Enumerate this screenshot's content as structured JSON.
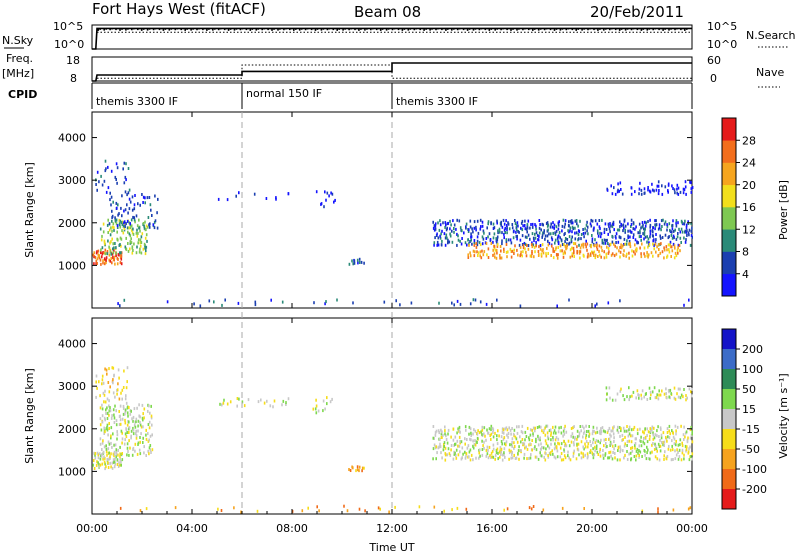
{
  "header": {
    "station": "Fort Hays West (fitACF)",
    "beam": "Beam 08",
    "date": "20/Feb/2011"
  },
  "strips": {
    "nsky": {
      "label": "N.Sky",
      "left_ticks": [
        "10^5",
        "10^0"
      ],
      "right_ticks": [
        "10^5",
        "10^0"
      ],
      "right_label": "N.Search",
      "series": [
        {
          "name": "N.Sky",
          "style": "solid",
          "x": [
            0.0,
            0.15,
            0.2,
            24.0
          ],
          "y": [
            1,
            1,
            20000,
            20000
          ]
        },
        {
          "name": "N.Search",
          "style": "dotted",
          "x": [
            0.2,
            24.0
          ],
          "y": [
            3000,
            3000
          ]
        }
      ]
    },
    "freq": {
      "label_line1": "Freq.",
      "label_line2": "[MHz]",
      "left_ticks": [
        "18",
        "8"
      ],
      "right_ticks": [
        "60",
        "0"
      ],
      "right_label": "Nave",
      "ylim_left": [
        8,
        18
      ],
      "ylim_right": [
        0,
        60
      ],
      "freq_series": {
        "name": "Freq.",
        "x": [
          0.0,
          0.15,
          0.2,
          6.0,
          6.0,
          12.0,
          12.0,
          24.0
        ],
        "y": [
          8,
          8,
          10.5,
          10.5,
          12,
          12,
          15.5,
          15.5
        ]
      },
      "nave_series": {
        "name": "Nave",
        "x": [
          0.2,
          6.0,
          6.0,
          12.0,
          12.0,
          24.0
        ],
        "y": [
          7,
          7,
          40,
          40,
          7,
          7
        ]
      }
    },
    "cpid": {
      "label": "CPID",
      "segments": [
        {
          "start": 0,
          "end": 6,
          "label": "themis 3300 IF"
        },
        {
          "start": 6,
          "end": 12,
          "label": "normal 150 IF"
        },
        {
          "start": 12,
          "end": 24,
          "label": "themis 3300 IF"
        }
      ]
    }
  },
  "chart_data": [
    {
      "type": "heatmap",
      "name": "power",
      "ylabel": "Slant Range [km]",
      "xlabel": "",
      "xlim": [
        0,
        24
      ],
      "ylim": [
        0,
        4600
      ],
      "yticks": [
        1000,
        2000,
        3000,
        4000
      ],
      "colorbar": {
        "label": "Power [dB]",
        "ticks": [
          4,
          8,
          12,
          16,
          20,
          24,
          28
        ],
        "bands": [
          "#1414ff",
          "#1b3fb0",
          "#2a8a78",
          "#7ec852",
          "#f2df1c",
          "#f6a51e",
          "#f36e1c",
          "#e51b1b"
        ]
      },
      "regions": [
        {
          "x": [
            0.0,
            1.2
          ],
          "y": [
            1050,
            1400
          ],
          "level": 6,
          "density": 0.9
        },
        {
          "x": [
            0.3,
            2.2
          ],
          "y": [
            1300,
            2100
          ],
          "level": 3,
          "density": 0.6
        },
        {
          "x": [
            0.6,
            2.6
          ],
          "y": [
            1900,
            2700
          ],
          "level": 1,
          "density": 0.35
        },
        {
          "x": [
            0.1,
            1.5
          ],
          "y": [
            2700,
            3500
          ],
          "level": 1,
          "density": 0.2
        },
        {
          "x": [
            5.0,
            8.0
          ],
          "y": [
            2550,
            2750
          ],
          "level": 0,
          "density": 0.12
        },
        {
          "x": [
            8.8,
            9.7
          ],
          "y": [
            2400,
            2800
          ],
          "level": 0,
          "density": 0.3
        },
        {
          "x": [
            10.2,
            10.9
          ],
          "y": [
            1050,
            1180
          ],
          "level": 1,
          "density": 0.8
        },
        {
          "x": [
            13.6,
            24.0
          ],
          "y": [
            1500,
            2100
          ],
          "level": 1,
          "density": 0.55
        },
        {
          "x": [
            15.0,
            23.5
          ],
          "y": [
            1200,
            1550
          ],
          "level": 5,
          "density": 0.55
        },
        {
          "x": [
            20.5,
            24.0
          ],
          "y": [
            2700,
            3000
          ],
          "level": 0,
          "density": 0.4
        },
        {
          "x": [
            0.0,
            24.0
          ],
          "y": [
            80,
            230
          ],
          "level": 1,
          "density": 0.08
        }
      ]
    },
    {
      "type": "heatmap",
      "name": "velocity",
      "ylabel": "Slant Range [km]",
      "xlabel": "Time UT",
      "xlim": [
        0,
        24
      ],
      "ylim": [
        0,
        4600
      ],
      "yticks": [
        1000,
        2000,
        3000,
        4000
      ],
      "xticks": [
        "00:00",
        "04:00",
        "08:00",
        "12:00",
        "16:00",
        "20:00",
        "00:00"
      ],
      "colorbar": {
        "label": "Velocity [m s⁻¹]",
        "ticks": [
          200,
          100,
          50,
          15,
          -15,
          -50,
          -100,
          -200
        ],
        "bands": [
          "#1414c8",
          "#3c6cc8",
          "#2e8b57",
          "#7ed84e",
          "#c8c8c8",
          "#f6dd1a",
          "#f6a31e",
          "#f06a18",
          "#e51b1b"
        ]
      },
      "regions": [
        {
          "x": [
            0.0,
            1.2
          ],
          "y": [
            1100,
            1500
          ],
          "level": 4,
          "density": 0.85
        },
        {
          "x": [
            0.3,
            2.4
          ],
          "y": [
            1400,
            2600
          ],
          "level": 4,
          "density": 0.55
        },
        {
          "x": [
            0.1,
            1.5
          ],
          "y": [
            2600,
            3500
          ],
          "level": 5,
          "density": 0.25
        },
        {
          "x": [
            5.0,
            8.0
          ],
          "y": [
            2550,
            2750
          ],
          "level": 4,
          "density": 0.2
        },
        {
          "x": [
            8.8,
            9.7
          ],
          "y": [
            2400,
            2800
          ],
          "level": 4,
          "density": 0.3
        },
        {
          "x": [
            10.2,
            10.9
          ],
          "y": [
            1050,
            1150
          ],
          "level": 6,
          "density": 0.8
        },
        {
          "x": [
            13.6,
            24.0
          ],
          "y": [
            1300,
            2100
          ],
          "level": 4,
          "density": 0.6
        },
        {
          "x": [
            20.5,
            24.0
          ],
          "y": [
            2700,
            3000
          ],
          "level": 4,
          "density": 0.45
        },
        {
          "x": [
            0.0,
            24.0
          ],
          "y": [
            80,
            230
          ],
          "level": 6,
          "density": 0.08
        }
      ]
    }
  ]
}
